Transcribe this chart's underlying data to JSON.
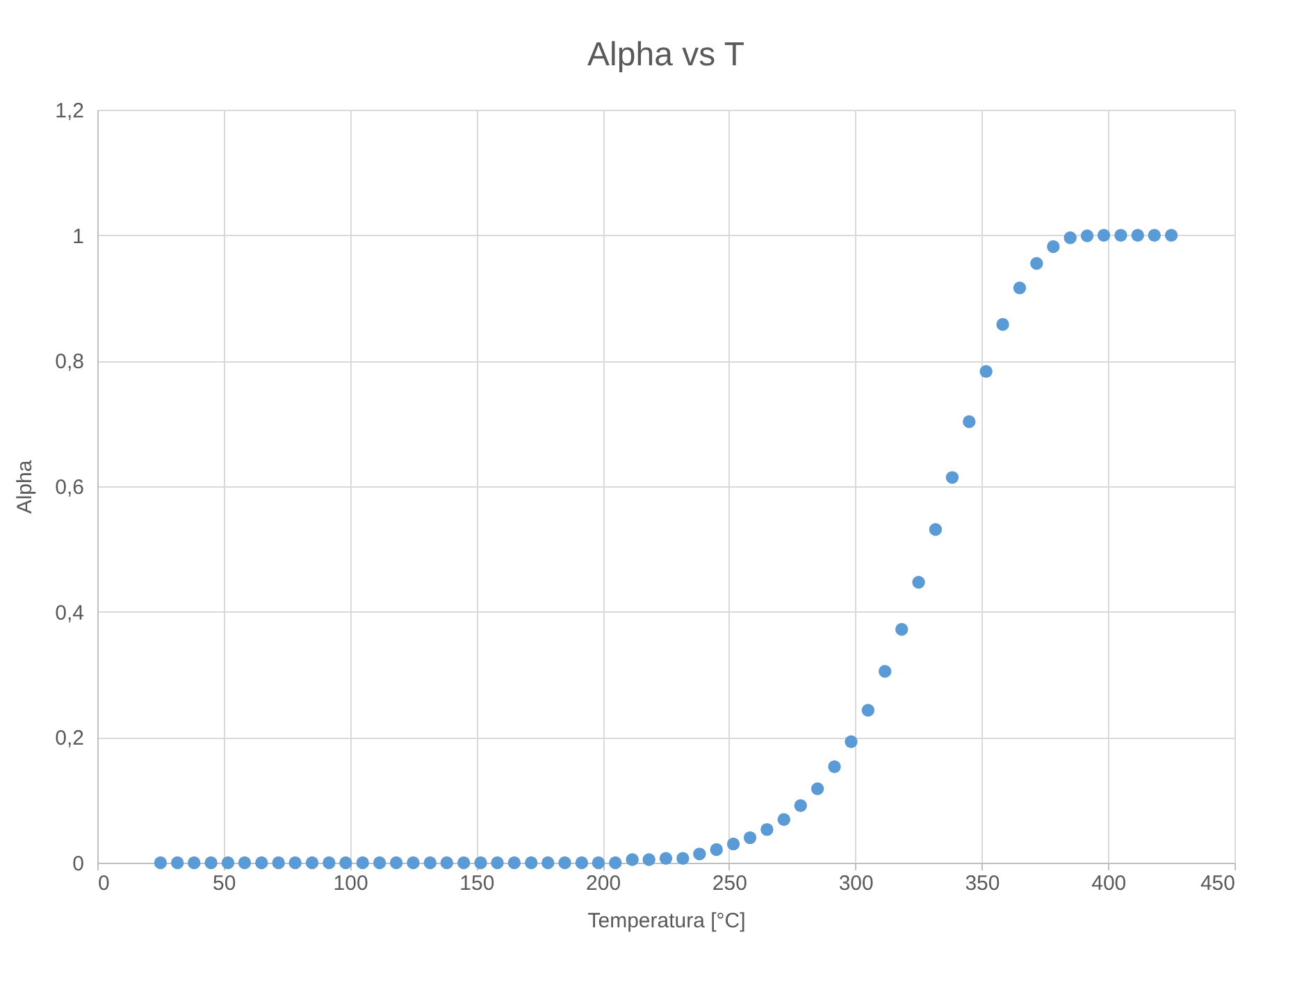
{
  "chart_data": {
    "type": "scatter",
    "title": "Alpha vs T",
    "xlabel": "Temperatura [°C]",
    "ylabel": "Alpha",
    "x": [
      25,
      31.7,
      38.3,
      45,
      51.7,
      58.3,
      65,
      71.7,
      78.3,
      85,
      91.7,
      98.3,
      105,
      111.7,
      118.3,
      125,
      131.7,
      138.3,
      145,
      151.7,
      158.3,
      165,
      171.7,
      178.3,
      185,
      191.7,
      198.3,
      205,
      211.7,
      218.3,
      225,
      231.7,
      238.3,
      245,
      251.7,
      258.3,
      265,
      271.7,
      278.3,
      285,
      291.7,
      298.3,
      305,
      311.7,
      318.3,
      325,
      331.7,
      338.3,
      345,
      351.7,
      358.3,
      365,
      371.7,
      378.3,
      385,
      391.7,
      398.3,
      405,
      411.7,
      418.3,
      425
    ],
    "series": [
      {
        "color": "#5b9bd5",
        "values": [
          0,
          0,
          0,
          0,
          0,
          0,
          0,
          0,
          0,
          0,
          0,
          0,
          0,
          0,
          0,
          0,
          0,
          0,
          0,
          0,
          0,
          0,
          0,
          0,
          0,
          0,
          0,
          0,
          0.005,
          0.005,
          0.007,
          0.007,
          0.014,
          0.021,
          0.03,
          0.04,
          0.053,
          0.069,
          0.091,
          0.118,
          0.153,
          0.193,
          0.243,
          0.305,
          0.372,
          0.447,
          0.531,
          0.614,
          0.703,
          0.783,
          0.858,
          0.916,
          0.955,
          0.982,
          0.996,
          0.999,
          1,
          1,
          1,
          1,
          1
        ]
      }
    ],
    "xlim": [
      0,
      450
    ],
    "xticks": [
      0,
      50,
      100,
      150,
      200,
      250,
      300,
      350,
      400,
      450
    ],
    "ylim": [
      0,
      1.2
    ],
    "yticks": [
      0,
      {
        "value": 0.2,
        "label": "0,2"
      },
      {
        "value": 0.4,
        "label": "0,4"
      },
      {
        "value": 0.6,
        "label": "0,6"
      },
      {
        "value": 0.8,
        "label": "0,8"
      },
      1,
      {
        "value": 1.2,
        "label": "1,2"
      }
    ],
    "grid": true,
    "marker": "circle"
  }
}
